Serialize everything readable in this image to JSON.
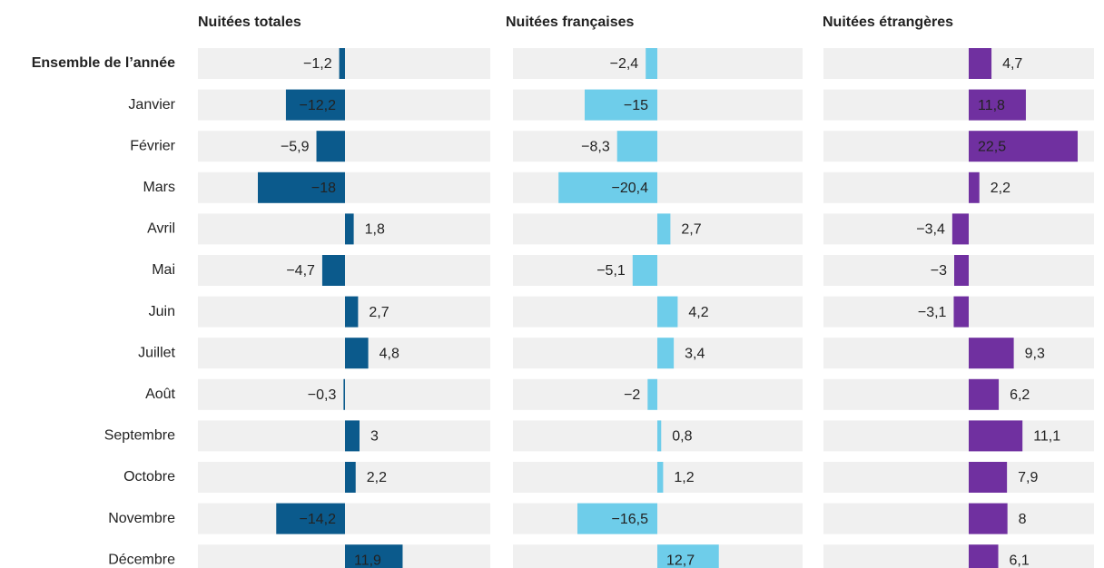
{
  "chart_data": {
    "type": "bar",
    "orientation": "horizontal",
    "categories": [
      "Ensemble de l’année",
      "Janvier",
      "Février",
      "Mars",
      "Avril",
      "Mai",
      "Juin",
      "Juillet",
      "Août",
      "Septembre",
      "Octobre",
      "Novembre",
      "Décembre"
    ],
    "xlim": [
      -30,
      30
    ],
    "series": [
      {
        "name": "Nuitées totales",
        "color": "#0b5a8c",
        "values": [
          -1.2,
          -12.2,
          -5.9,
          -18,
          1.8,
          -4.7,
          2.7,
          4.8,
          -0.3,
          3,
          2.2,
          -14.2,
          11.9
        ],
        "value_labels": [
          "−1,2",
          "−12,2",
          "−5,9",
          "−18",
          "1,8",
          "−4,7",
          "2,7",
          "4,8",
          "−0,3",
          "3",
          "2,2",
          "−14,2",
          "11,9"
        ]
      },
      {
        "name": "Nuitées françaises",
        "color": "#6ecdea",
        "values": [
          -2.4,
          -15,
          -8.3,
          -20.4,
          2.7,
          -5.1,
          4.2,
          3.4,
          -2,
          0.8,
          1.2,
          -16.5,
          12.7
        ],
        "value_labels": [
          "−2,4",
          "−15",
          "−8,3",
          "−20,4",
          "2,7",
          "−5,1",
          "4,2",
          "3,4",
          "−2",
          "0,8",
          "1,2",
          "−16,5",
          "12,7"
        ]
      },
      {
        "name": "Nuitées étrangères",
        "color": "#7030a0",
        "values": [
          4.7,
          11.8,
          22.5,
          2.2,
          -3.4,
          -3,
          -3.1,
          9.3,
          6.2,
          11.1,
          7.9,
          8,
          6.1
        ],
        "value_labels": [
          "4,7",
          "11,8",
          "22,5",
          "2,2",
          "−3,4",
          "−3",
          "−3,1",
          "9,3",
          "6,2",
          "11,1",
          "7,9",
          "8",
          "6,1"
        ]
      }
    ]
  }
}
